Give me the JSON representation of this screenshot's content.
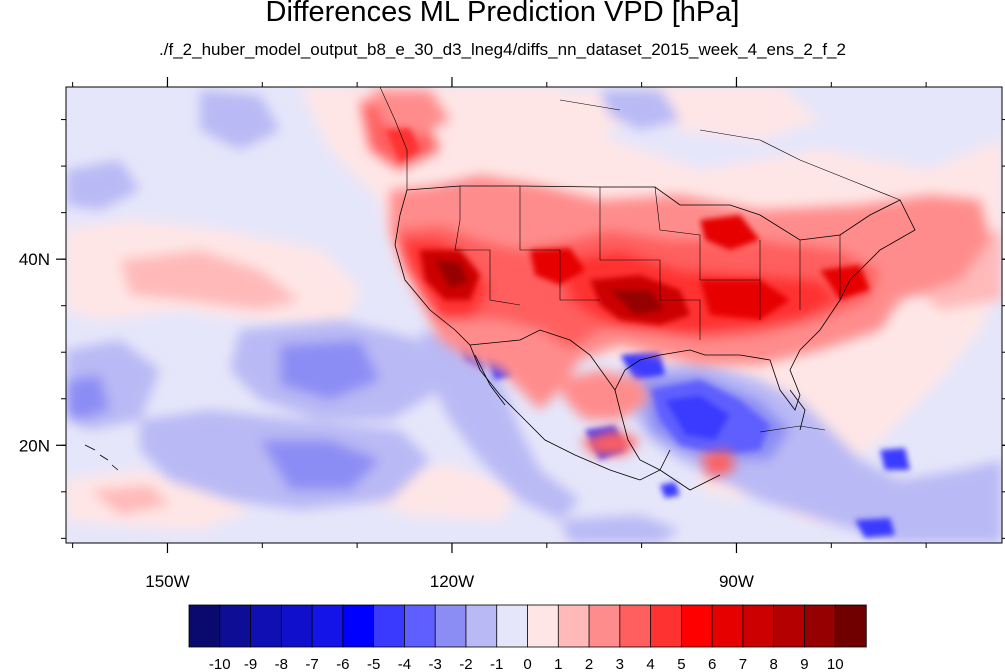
{
  "title": "Differences ML Prediction VPD [hPa]",
  "subtitle": "./f_2_huber_model_output_b8_e_30_d3_lneg4/diffs_nn_dataset_2015_week_4_ens_2_f_2",
  "map": {
    "projection": "cylindrical equidistant",
    "lon_range": [
      -160.7,
      -62.0
    ],
    "lat_range": [
      9.5,
      58.5
    ],
    "lon_ticks": [
      {
        "value": -150,
        "label": "150W"
      },
      {
        "value": -120,
        "label": "120W"
      },
      {
        "value": -90,
        "label": "90W"
      }
    ],
    "lat_ticks": [
      {
        "value": 40,
        "label": "40N"
      },
      {
        "value": 20,
        "label": "20N"
      }
    ],
    "boundaries": [
      "coastlines",
      "US state borders",
      "Mexico borders",
      "Canadian borders"
    ]
  },
  "colorbar": {
    "labels": [
      "-10",
      "-9",
      "-8",
      "-7",
      "-6",
      "-5",
      "-4",
      "-3",
      "-2",
      "-1",
      "0",
      "1",
      "2",
      "3",
      "4",
      "5",
      "6",
      "7",
      "8",
      "9",
      "10"
    ],
    "colors": [
      "#0a0a6e",
      "#0d0d96",
      "#0f0fb4",
      "#1010cc",
      "#1414e8",
      "#0000ff",
      "#3a3aff",
      "#5f5fff",
      "#8c8cf5",
      "#b9b9f5",
      "#e6e6fa",
      "#ffe6e6",
      "#ffb9b9",
      "#ff8c8c",
      "#ff5f5f",
      "#ff3232",
      "#ff0000",
      "#e60000",
      "#cc0000",
      "#b40000",
      "#960000",
      "#700000"
    ]
  },
  "fields": {
    "background_color": "#e6e6fa",
    "warm_core_region": "continental United States",
    "cool_regions": [
      "Gulf of Mexico",
      "Caribbean",
      "Baja California coast",
      "Pacific west of Mexico"
    ]
  }
}
